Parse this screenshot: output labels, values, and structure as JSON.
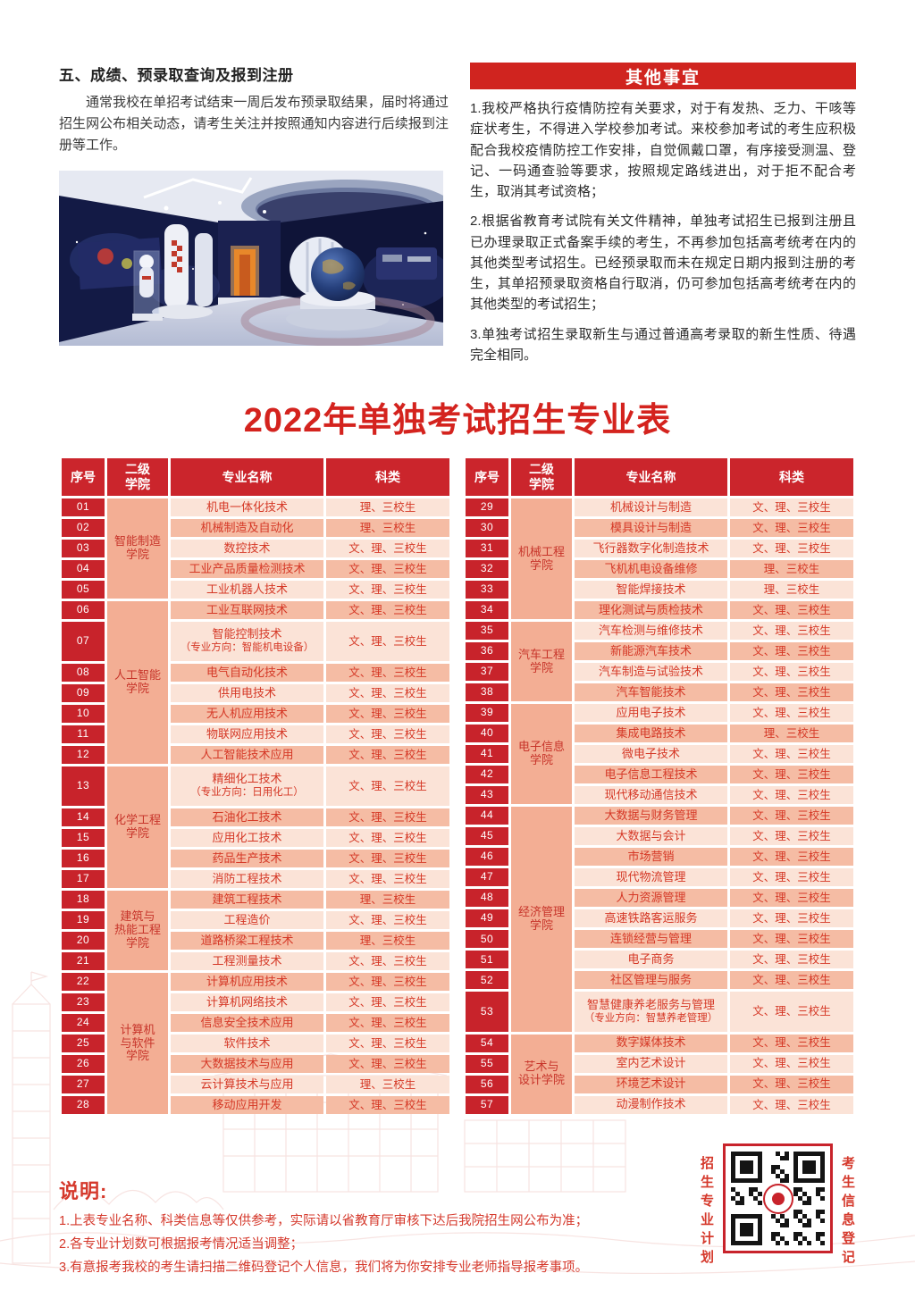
{
  "colors": {
    "deep_red": "#c8232b",
    "title_red": "#d4231e",
    "banner_red": "#d0241f",
    "salmon": "#f3ae94",
    "row_light": "#fbe3d7",
    "row_dark": "#f5bca4",
    "table_text_red": "#d53826",
    "notes_red": "#d5392c"
  },
  "section5": {
    "heading": "五、成绩、预录取查询及报到注册",
    "body": "通常我校在单招考试结束一周后发布预录取结果，届时将通过招生网公布相关动态，请考生关注并按照通知内容进行后续报到注册等工作。"
  },
  "other": {
    "heading": "其他事宜",
    "paragraphs": [
      "1.我校严格执行疫情防控有关要求，对于有发热、乏力、干咳等症状考生，不得进入学校参加考试。来校参加考试的考生应积极配合我校疫情防控工作安排，自觉佩戴口罩，有序接受测温、登记、一码通查验等要求，按照规定路线进出，对于拒不配合考生，取消其考试资格；",
      "2.根据省教育考试院有关文件精神，单独考试招生已报到注册且已办理录取正式备案手续的考生，不再参加包括高考统考在内的其他类型考试招生。已经预录取而未在规定日期内报到注册的考生，其单招预录取资格自行取消，仍可参加包括高考统考在内的其他类型的考试招生；",
      "3.单独考试招生录取新生与通过普通高考录取的新生性质、待遇完全相同。"
    ]
  },
  "tableTitle": "2022年单独考试招生专业表",
  "table": {
    "headers": [
      "序号",
      "二级\n学院",
      "专业名称",
      "科类"
    ],
    "left_groups": [
      {
        "college": "智能制造\n学院",
        "rows": [
          {
            "no": "01",
            "major": "机电一体化技术",
            "cat": "理、三校生"
          },
          {
            "no": "02",
            "major": "机械制造及自动化",
            "cat": "理、三校生"
          },
          {
            "no": "03",
            "major": "数控技术",
            "cat": "文、理、三校生"
          },
          {
            "no": "04",
            "major": "工业产品质量检测技术",
            "cat": "文、理、三校生"
          },
          {
            "no": "05",
            "major": "工业机器人技术",
            "cat": "文、理、三校生"
          }
        ]
      },
      {
        "college": "人工智能\n学院",
        "rows": [
          {
            "no": "06",
            "major": "工业互联网技术",
            "cat": "文、理、三校生"
          },
          {
            "no": "07",
            "major": "智能控制技术",
            "sub": "（专业方向：智能机电设备）",
            "cat": "文、理、三校生"
          },
          {
            "no": "08",
            "major": "电气自动化技术",
            "cat": "文、理、三校生"
          },
          {
            "no": "09",
            "major": "供用电技术",
            "cat": "文、理、三校生"
          },
          {
            "no": "10",
            "major": "无人机应用技术",
            "cat": "文、理、三校生"
          },
          {
            "no": "11",
            "major": "物联网应用技术",
            "cat": "文、理、三校生"
          },
          {
            "no": "12",
            "major": "人工智能技术应用",
            "cat": "文、理、三校生"
          }
        ]
      },
      {
        "college": "化学工程\n学院",
        "rows": [
          {
            "no": "13",
            "major": "精细化工技术",
            "sub": "（专业方向：日用化工）",
            "cat": "文、理、三校生"
          },
          {
            "no": "14",
            "major": "石油化工技术",
            "cat": "文、理、三校生"
          },
          {
            "no": "15",
            "major": "应用化工技术",
            "cat": "文、理、三校生"
          },
          {
            "no": "16",
            "major": "药品生产技术",
            "cat": "文、理、三校生"
          },
          {
            "no": "17",
            "major": "消防工程技术",
            "cat": "文、理、三校生"
          }
        ]
      },
      {
        "college": "建筑与\n热能工程\n学院",
        "rows": [
          {
            "no": "18",
            "major": "建筑工程技术",
            "cat": "理、三校生"
          },
          {
            "no": "19",
            "major": "工程造价",
            "cat": "文、理、三校生"
          },
          {
            "no": "20",
            "major": "道路桥梁工程技术",
            "cat": "理、三校生"
          },
          {
            "no": "21",
            "major": "工程测量技术",
            "cat": "文、理、三校生"
          }
        ]
      },
      {
        "college": "计算机\n与软件\n学院",
        "rows": [
          {
            "no": "22",
            "major": "计算机应用技术",
            "cat": "文、理、三校生"
          },
          {
            "no": "23",
            "major": "计算机网络技术",
            "cat": "文、理、三校生"
          },
          {
            "no": "24",
            "major": "信息安全技术应用",
            "cat": "文、理、三校生"
          },
          {
            "no": "25",
            "major": "软件技术",
            "cat": "文、理、三校生"
          },
          {
            "no": "26",
            "major": "大数据技术与应用",
            "cat": "文、理、三校生"
          },
          {
            "no": "27",
            "major": "云计算技术与应用",
            "cat": "理、三校生"
          },
          {
            "no": "28",
            "major": "移动应用开发",
            "cat": "文、理、三校生"
          }
        ]
      }
    ],
    "right_groups": [
      {
        "college": "机械工程\n学院",
        "rows": [
          {
            "no": "29",
            "major": "机械设计与制造",
            "cat": "文、理、三校生"
          },
          {
            "no": "30",
            "major": "模具设计与制造",
            "cat": "文、理、三校生"
          },
          {
            "no": "31",
            "major": "飞行器数字化制造技术",
            "cat": "文、理、三校生"
          },
          {
            "no": "32",
            "major": "飞机机电设备维修",
            "cat": "理、三校生"
          },
          {
            "no": "33",
            "major": "智能焊接技术",
            "cat": "理、三校生"
          },
          {
            "no": "34",
            "major": "理化测试与质检技术",
            "cat": "文、理、三校生"
          }
        ]
      },
      {
        "college": "汽车工程\n学院",
        "rows": [
          {
            "no": "35",
            "major": "汽车检测与维修技术",
            "cat": "文、理、三校生"
          },
          {
            "no": "36",
            "major": "新能源汽车技术",
            "cat": "文、理、三校生"
          },
          {
            "no": "37",
            "major": "汽车制造与试验技术",
            "cat": "文、理、三校生"
          },
          {
            "no": "38",
            "major": "汽车智能技术",
            "cat": "文、理、三校生"
          }
        ]
      },
      {
        "college": "电子信息\n学院",
        "rows": [
          {
            "no": "39",
            "major": "应用电子技术",
            "cat": "文、理、三校生"
          },
          {
            "no": "40",
            "major": "集成电路技术",
            "cat": "理、三校生"
          },
          {
            "no": "41",
            "major": "微电子技术",
            "cat": "文、理、三校生"
          },
          {
            "no": "42",
            "major": "电子信息工程技术",
            "cat": "文、理、三校生"
          },
          {
            "no": "43",
            "major": "现代移动通信技术",
            "cat": "文、理、三校生"
          }
        ]
      },
      {
        "college": "经济管理\n学院",
        "rows": [
          {
            "no": "44",
            "major": "大数据与财务管理",
            "cat": "文、理、三校生"
          },
          {
            "no": "45",
            "major": "大数据与会计",
            "cat": "文、理、三校生"
          },
          {
            "no": "46",
            "major": "市场营销",
            "cat": "文、理、三校生"
          },
          {
            "no": "47",
            "major": "现代物流管理",
            "cat": "文、理、三校生"
          },
          {
            "no": "48",
            "major": "人力资源管理",
            "cat": "文、理、三校生"
          },
          {
            "no": "49",
            "major": "高速铁路客运服务",
            "cat": "文、理、三校生"
          },
          {
            "no": "50",
            "major": "连锁经营与管理",
            "cat": "文、理、三校生"
          },
          {
            "no": "51",
            "major": "电子商务",
            "cat": "文、理、三校生"
          },
          {
            "no": "52",
            "major": "社区管理与服务",
            "cat": "文、理、三校生"
          },
          {
            "no": "53",
            "major": "智慧健康养老服务与管理",
            "sub": "（专业方向：智慧养老管理）",
            "cat": "文、理、三校生"
          }
        ]
      },
      {
        "college": "艺术与\n设计学院",
        "rows": [
          {
            "no": "54",
            "major": "数字媒体技术",
            "cat": "文、理、三校生"
          },
          {
            "no": "55",
            "major": "室内艺术设计",
            "cat": "文、理、三校生"
          },
          {
            "no": "56",
            "major": "环境艺术设计",
            "cat": "文、理、三校生"
          },
          {
            "no": "57",
            "major": "动漫制作技术",
            "cat": "文、理、三校生"
          }
        ]
      }
    ]
  },
  "notes": {
    "title": "说明:",
    "items": [
      "1.上表专业名称、科类信息等仅供参考，实际请以省教育厅审核下达后我院招生网公布为准；",
      "2.各专业计划数可根据报考情况适当调整；",
      "3.有意报考我校的考生请扫描二维码登记个人信息，我们将为你安排专业老师指导报考事项。"
    ]
  },
  "qr": {
    "left_label": "招生专业计划",
    "right_label": "考生信息登记"
  }
}
